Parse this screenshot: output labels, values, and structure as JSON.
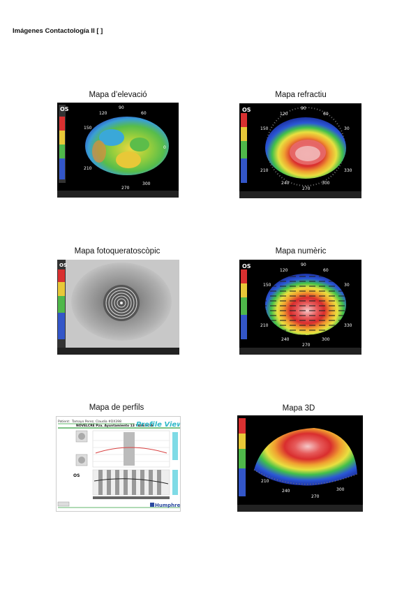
{
  "page": {
    "title": "Imágenes Contactología II [ ]"
  },
  "figures": [
    {
      "caption": "Mapa d’elevació",
      "eye": "OS",
      "degrees": [
        "90",
        "120",
        "60",
        "150",
        "0",
        "210",
        "300",
        "270"
      ]
    },
    {
      "caption": "Mapa refractiu",
      "eye": "OS",
      "degrees": [
        "90",
        "120",
        "60",
        "150",
        "30",
        "210",
        "330",
        "240",
        "300",
        "270"
      ]
    },
    {
      "caption": "Mapa fotoqueratoscòpic",
      "eye": "OS"
    },
    {
      "caption": "Mapa numèric",
      "eye": "OS",
      "degrees": [
        "90",
        "120",
        "60",
        "150",
        "30",
        "210",
        "330",
        "240",
        "300",
        "270"
      ]
    },
    {
      "caption": "Mapa de perfils",
      "header_patient": "Patient:",
      "header_name": "Tamayo Perez, Claudia  #DX398",
      "header_address": "NOVELCRE   Pza. Ayuntamiento 13 VALENCIA",
      "view_title": "Profile View",
      "eye": "OS",
      "footer_logo": "Humphrey"
    },
    {
      "caption": "Mapa 3D",
      "degrees": [
        "210",
        "240",
        "270",
        "300"
      ]
    }
  ],
  "colors": {
    "bg": "#ffffff",
    "frame": "#000000",
    "profile_accent": "#2fb8c8",
    "profile_green": "#2d9d3a"
  }
}
